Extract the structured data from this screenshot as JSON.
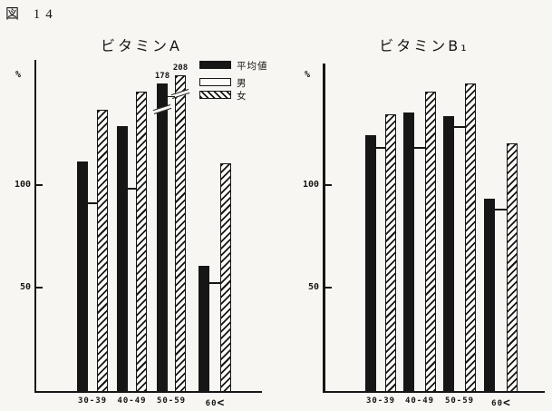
{
  "figure_label": "図 14",
  "colors": {
    "ink": "#161616",
    "paper": "#f7f6f2"
  },
  "y_axis": {
    "unit_label": "%",
    "tick_100": "100",
    "tick_50": "50"
  },
  "legend": {
    "items": [
      {
        "label": "平均値",
        "swatch": "solid-black"
      },
      {
        "label": "男",
        "swatch": "white-open"
      },
      {
        "label": "女",
        "swatch": "hatched"
      }
    ]
  },
  "chart_data": [
    {
      "type": "bar",
      "title": "ビタミンA",
      "ylabel": "%",
      "yticks": [
        50,
        100
      ],
      "ylim": [
        0,
        160
      ],
      "grid": false,
      "legend_position": "top-right",
      "categories": [
        "30-39",
        "40-49",
        "50-59",
        "60<"
      ],
      "series": [
        {
          "name": "平均値",
          "style": "solid-black",
          "values": [
            112,
            129,
            {
              "value": 178,
              "drawn": 150,
              "label": "178",
              "break": true,
              "break_offset": 26
            },
            61
          ]
        },
        {
          "name": "男",
          "style": "line",
          "values": [
            92,
            99,
            144,
            53
          ]
        },
        {
          "name": "女",
          "style": "hatched",
          "values": [
            137,
            146,
            {
              "value": 208,
              "drawn": 154,
              "label": "208",
              "break": true,
              "break_offset": 18
            },
            111
          ]
        }
      ]
    },
    {
      "type": "bar",
      "title": "ビタミンB₁",
      "ylabel": "%",
      "yticks": [
        50,
        100
      ],
      "ylim": [
        0,
        160
      ],
      "grid": false,
      "categories": [
        "30-39",
        "40-49",
        "50-59",
        "60<"
      ],
      "series": [
        {
          "name": "平均値",
          "style": "solid-black",
          "values": [
            125,
            136,
            134,
            94
          ]
        },
        {
          "name": "男",
          "style": "line",
          "values": [
            119,
            119,
            129,
            89
          ]
        },
        {
          "name": "女",
          "style": "hatched",
          "values": [
            135,
            146,
            150,
            121
          ]
        }
      ]
    }
  ]
}
